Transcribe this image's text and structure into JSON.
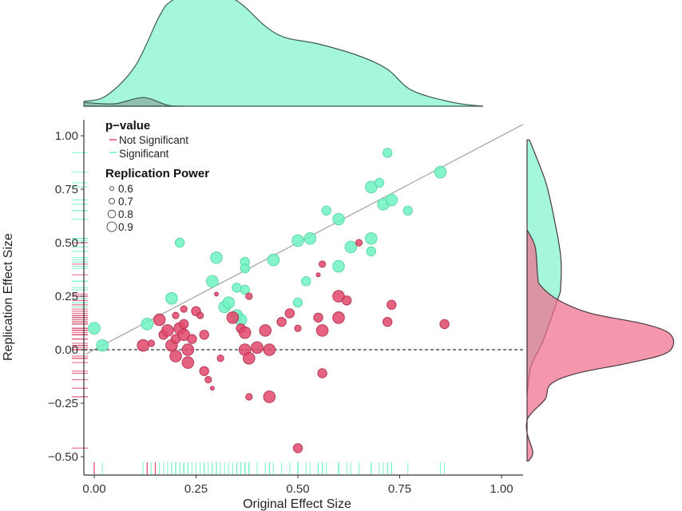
{
  "chart_data": {
    "type": "scatter",
    "xlabel": "Original Effect Size",
    "ylabel": "Replication Effect Size",
    "xlim": [
      -0.026,
      1.055
    ],
    "ylim": [
      -0.59,
      1.07
    ],
    "x_ticks": [
      "0.00",
      "0.25",
      "0.50",
      "0.75",
      "1.00"
    ],
    "x_tick_values": [
      0,
      0.25,
      0.5,
      0.75,
      1.0
    ],
    "y_ticks": [
      "1.00",
      "0.75",
      "0.50",
      "0.25",
      "0.00",
      "−0.25",
      "−0.50"
    ],
    "y_tick_values": [
      1.0,
      0.75,
      0.5,
      0.25,
      0,
      -0.25,
      -0.5
    ],
    "grid": false,
    "reference_lines": {
      "identity": "y = x (solid gray)",
      "zero": "y = 0 (dashed)"
    },
    "colors": {
      "significant": "#6ef2c2",
      "not_significant": "#e2476b",
      "significant_density": "#a4f7da",
      "not_significant_density": "#f58fa8"
    },
    "legend": {
      "placement": "top-left",
      "pvalue_title": "p−value",
      "pvalue_items": [
        "Not Significant",
        "Significant"
      ],
      "power_title": "Replication Power",
      "power_items": [
        "0.6",
        "0.7",
        "0.8",
        "0.9"
      ]
    },
    "series": [
      {
        "name": "Significant",
        "points": [
          [
            0.0,
            0.1,
            0.9
          ],
          [
            0.02,
            0.02,
            0.9
          ],
          [
            0.13,
            0.12,
            0.9
          ],
          [
            0.19,
            0.24,
            0.9
          ],
          [
            0.21,
            0.5,
            0.8
          ],
          [
            0.29,
            0.32,
            0.9
          ],
          [
            0.3,
            0.43,
            0.9
          ],
          [
            0.32,
            0.2,
            0.9
          ],
          [
            0.33,
            0.22,
            0.9
          ],
          [
            0.35,
            0.29,
            0.8
          ],
          [
            0.37,
            0.28,
            0.8
          ],
          [
            0.35,
            0.16,
            0.9
          ],
          [
            0.36,
            0.14,
            0.9
          ],
          [
            0.37,
            0.41,
            0.8
          ],
          [
            0.37,
            0.38,
            0.8
          ],
          [
            0.44,
            0.42,
            0.9
          ],
          [
            0.5,
            0.51,
            0.9
          ],
          [
            0.53,
            0.52,
            0.9
          ],
          [
            0.52,
            0.32,
            0.8
          ],
          [
            0.5,
            0.22,
            0.8
          ],
          [
            0.57,
            0.65,
            0.8
          ],
          [
            0.6,
            0.61,
            0.9
          ],
          [
            0.6,
            0.39,
            0.9
          ],
          [
            0.63,
            0.48,
            0.9
          ],
          [
            0.68,
            0.46,
            0.8
          ],
          [
            0.68,
            0.52,
            0.9
          ],
          [
            0.68,
            0.76,
            0.9
          ],
          [
            0.7,
            0.78,
            0.8
          ],
          [
            0.71,
            0.68,
            0.9
          ],
          [
            0.73,
            0.7,
            0.9
          ],
          [
            0.72,
            0.92,
            0.8
          ],
          [
            0.77,
            0.65,
            0.8
          ],
          [
            0.85,
            0.83,
            0.9
          ]
        ]
      },
      {
        "name": "Not Significant",
        "points": [
          [
            0.12,
            0.02,
            0.9
          ],
          [
            0.14,
            0.03,
            0.7
          ],
          [
            0.16,
            0.14,
            0.9
          ],
          [
            0.17,
            0.07,
            0.8
          ],
          [
            0.18,
            0.09,
            0.9
          ],
          [
            0.19,
            0.02,
            0.9
          ],
          [
            0.2,
            0.16,
            0.7
          ],
          [
            0.21,
            0.1,
            0.9
          ],
          [
            0.2,
            0.05,
            0.8
          ],
          [
            0.22,
            0.19,
            0.7
          ],
          [
            0.2,
            -0.03,
            0.9
          ],
          [
            0.22,
            0.12,
            0.8
          ],
          [
            0.22,
            0.07,
            0.9
          ],
          [
            0.23,
            0.0,
            0.9
          ],
          [
            0.24,
            0.05,
            0.8
          ],
          [
            0.23,
            -0.06,
            0.9
          ],
          [
            0.25,
            0.18,
            0.8
          ],
          [
            0.26,
            0.16,
            0.7
          ],
          [
            0.27,
            0.07,
            0.8
          ],
          [
            0.31,
            -0.04,
            0.7
          ],
          [
            0.27,
            -0.1,
            0.8
          ],
          [
            0.29,
            -0.18,
            0.6
          ],
          [
            0.28,
            -0.14,
            0.7
          ],
          [
            0.3,
            0.26,
            0.6
          ],
          [
            0.38,
            0.25,
            0.7
          ],
          [
            0.34,
            0.15,
            0.9
          ],
          [
            0.36,
            0.1,
            0.8
          ],
          [
            0.37,
            0.08,
            0.9
          ],
          [
            0.37,
            0.0,
            0.9
          ],
          [
            0.38,
            -0.04,
            0.9
          ],
          [
            0.4,
            0.01,
            0.9
          ],
          [
            0.38,
            -0.22,
            0.7
          ],
          [
            0.42,
            0.09,
            0.9
          ],
          [
            0.43,
            0.0,
            0.9
          ],
          [
            0.46,
            0.13,
            0.8
          ],
          [
            0.43,
            -0.22,
            0.9
          ],
          [
            0.48,
            0.17,
            0.8
          ],
          [
            0.5,
            0.1,
            0.7
          ],
          [
            0.5,
            -0.46,
            0.8
          ],
          [
            0.56,
            0.09,
            0.9
          ],
          [
            0.55,
            0.15,
            0.8
          ],
          [
            0.56,
            -0.11,
            0.8
          ],
          [
            0.55,
            0.35,
            0.6
          ],
          [
            0.56,
            0.4,
            0.7
          ],
          [
            0.6,
            0.15,
            0.9
          ],
          [
            0.6,
            0.25,
            0.9
          ],
          [
            0.62,
            0.23,
            0.8
          ],
          [
            0.65,
            0.5,
            0.7
          ],
          [
            0.73,
            0.21,
            0.8
          ],
          [
            0.72,
            0.13,
            0.8
          ],
          [
            0.86,
            0.12,
            0.8
          ]
        ]
      }
    ],
    "original_rug_not_significant": [
      0.0,
      0.13,
      0.15
    ],
    "density_original": {
      "significant": [
        [
          -0.025,
          0.1
        ],
        [
          0.03,
          0.22
        ],
        [
          0.1,
          0.83
        ],
        [
          0.16,
          1.88
        ],
        [
          0.19,
          2.2
        ],
        [
          0.26,
          2.5
        ],
        [
          0.35,
          2.2
        ],
        [
          0.42,
          1.67
        ],
        [
          0.47,
          1.43
        ],
        [
          0.55,
          1.3
        ],
        [
          0.65,
          1.05
        ],
        [
          0.72,
          0.77
        ],
        [
          0.78,
          0.33
        ],
        [
          0.88,
          0.08
        ],
        [
          0.955,
          0
        ]
      ],
      "not_significant": [
        [
          -0.025,
          0.08
        ],
        [
          0.05,
          0.05
        ],
        [
          0.12,
          0.18
        ],
        [
          0.18,
          0.02
        ],
        [
          0.22,
          0
        ]
      ]
    },
    "density_replication": {
      "significant": [
        [
          0.98,
          0.05
        ],
        [
          0.79,
          0.38
        ],
        [
          0.63,
          0.55
        ],
        [
          0.44,
          0.7
        ],
        [
          0.29,
          0.7
        ],
        [
          0.23,
          0.63
        ],
        [
          0.04,
          0.33
        ],
        [
          -0.08,
          0.08
        ],
        [
          -0.21,
          0
        ]
      ],
      "not_significant": [
        [
          0.56,
          0
        ],
        [
          0.48,
          0.17
        ],
        [
          0.35,
          0.22
        ],
        [
          0.3,
          0.28
        ],
        [
          0.23,
          0.67
        ],
        [
          0.17,
          1.33
        ],
        [
          0.12,
          2.45
        ],
        [
          0.07,
          3.0
        ],
        [
          -0.01,
          2.95
        ],
        [
          -0.06,
          2.17
        ],
        [
          -0.11,
          1.05
        ],
        [
          -0.16,
          0.5
        ],
        [
          -0.23,
          0.38
        ],
        [
          -0.29,
          0.12
        ],
        [
          -0.33,
          0
        ],
        [
          -0.39,
          0
        ],
        [
          -0.48,
          0.12
        ],
        [
          -0.52,
          0.03
        ]
      ]
    }
  }
}
